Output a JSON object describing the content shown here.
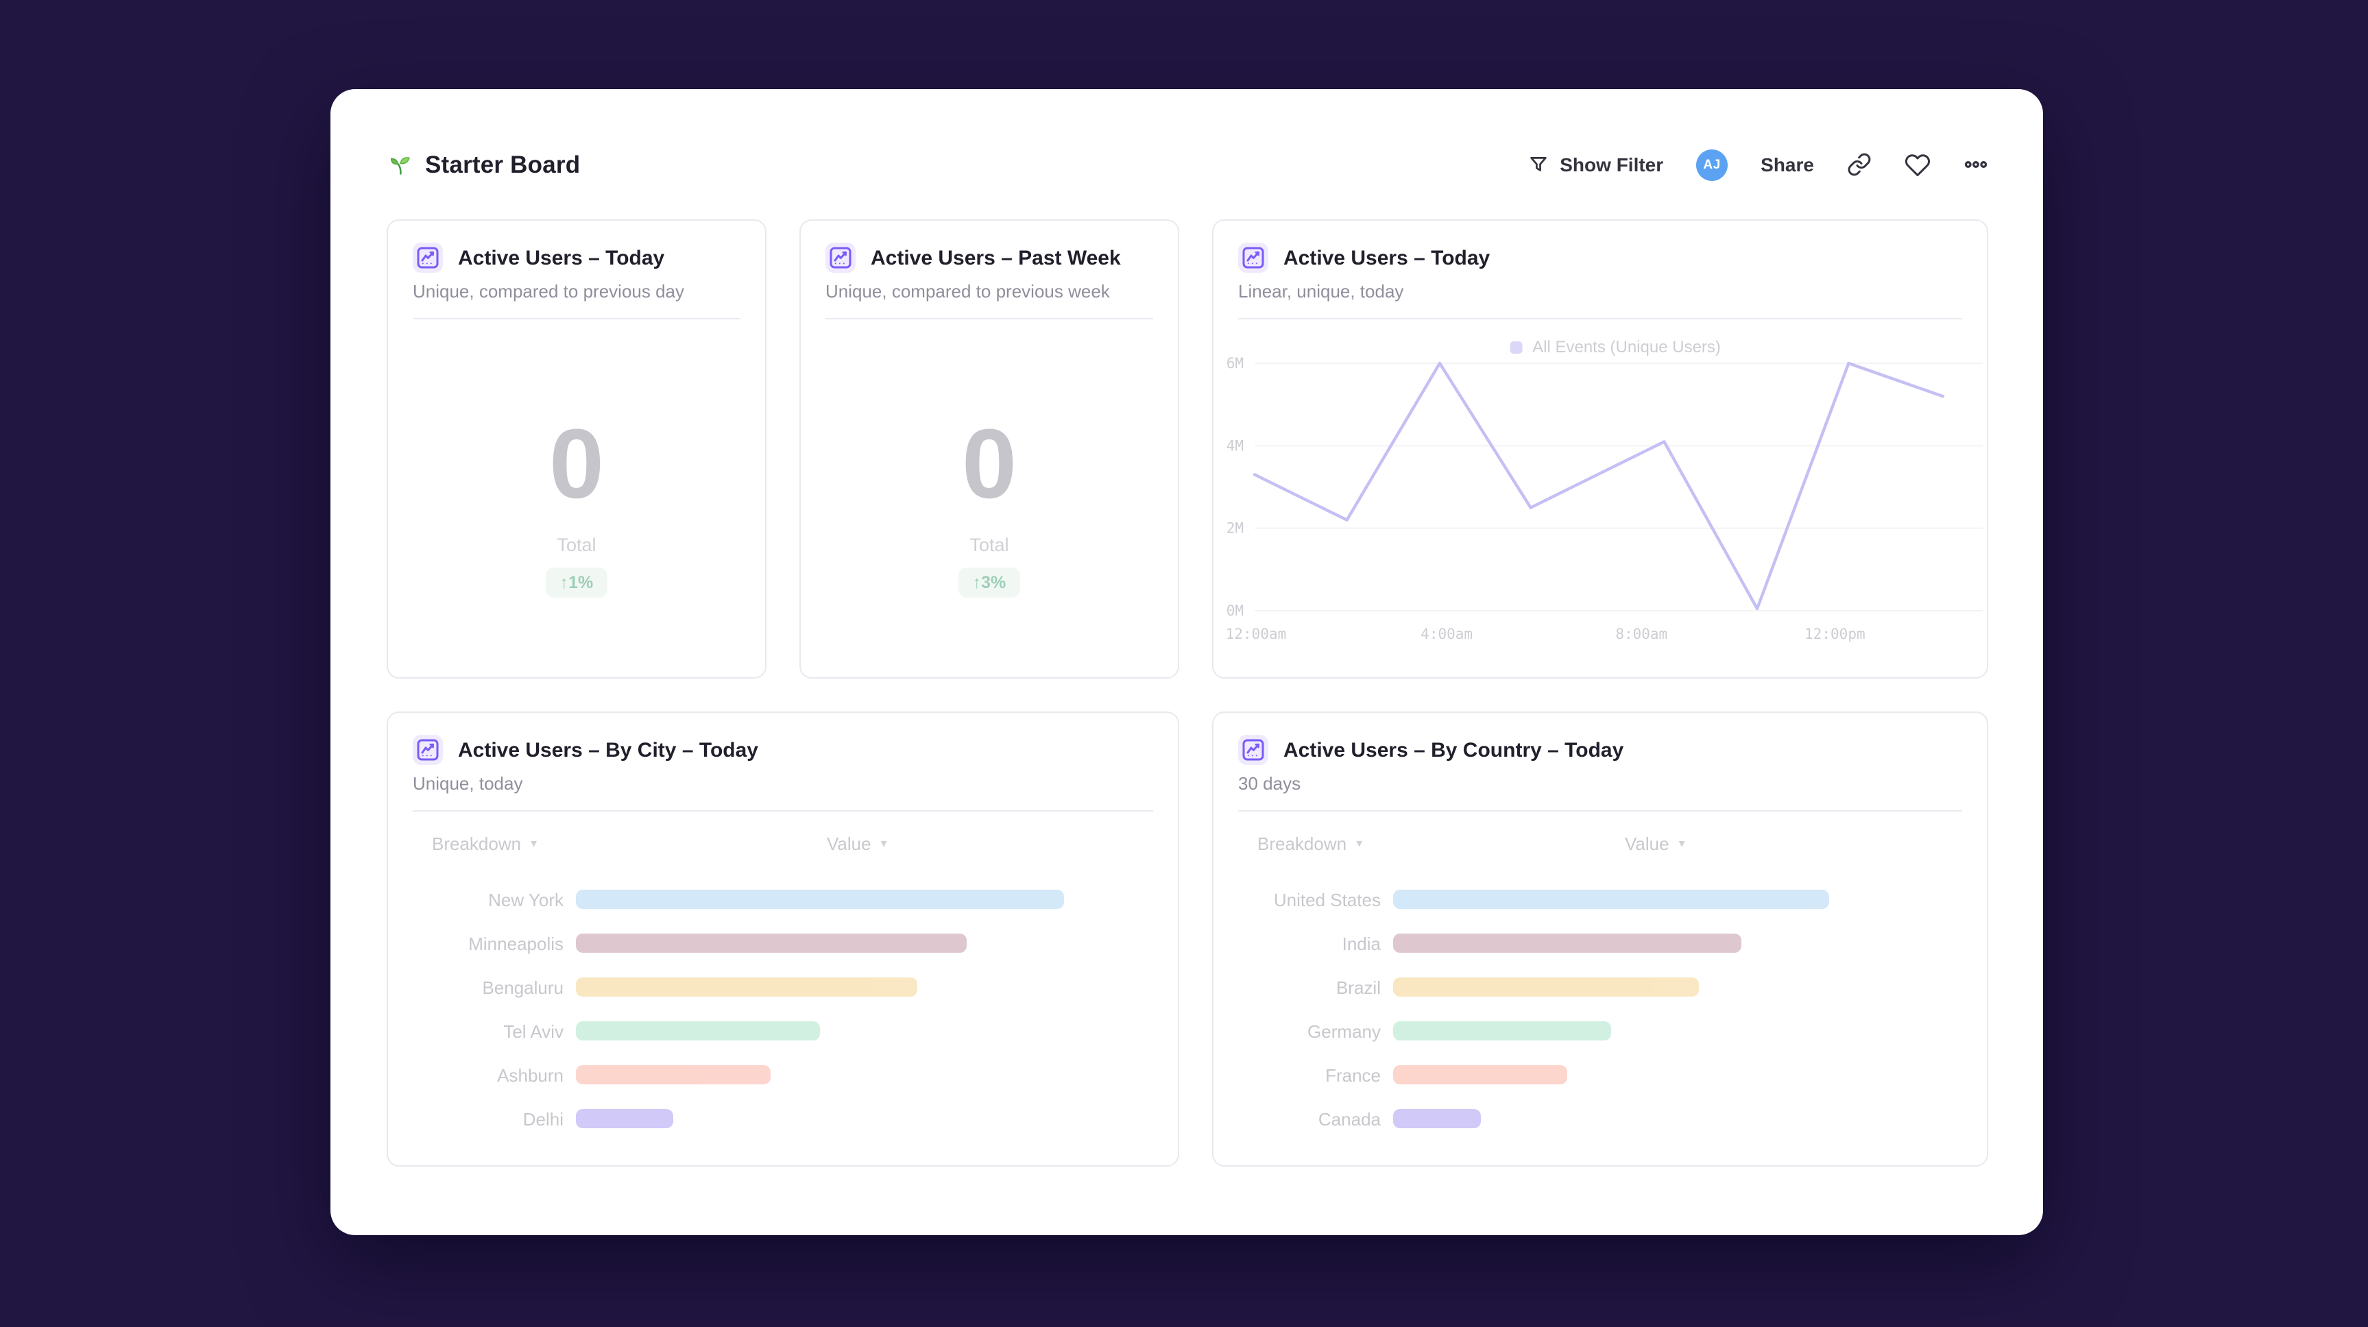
{
  "theme": {
    "page_bg": "#211642",
    "card_bg": "#ffffff",
    "accent_violet": "#7a5af8",
    "card_icon_bg": "#efeafd",
    "border": "#e9e8ee",
    "title_color": "#211f2b",
    "muted_text": "#908e9b",
    "avatar_blue": "#5ba3f2",
    "delta_green": "#3f9f74",
    "delta_bg": "#e4f3eb"
  },
  "header": {
    "title": "Starter Board",
    "title_icon": "seedling-icon",
    "show_filter": "Show Filter",
    "avatar": "AJ",
    "share": "Share",
    "icon_buttons": [
      "copy-link-icon",
      "heart-icon",
      "more-options-icon"
    ]
  },
  "cards": {
    "today": {
      "icon": "line-chart-icon",
      "title": "Active Users – Today",
      "subtitle": "Unique, compared to previous day",
      "value": "0",
      "value_caption": "Total",
      "delta": "↑1%"
    },
    "past_week": {
      "icon": "line-chart-icon",
      "title": "Active Users – Past Week",
      "subtitle": "Unique, compared to previous week",
      "value": "0",
      "value_caption": "Total",
      "delta": "↑3%"
    },
    "linear": {
      "icon": "line-chart-icon",
      "title": "Active Users – Today",
      "subtitle": "Linear, unique, today",
      "legend": "All Events (Unique Users)"
    },
    "by_city": {
      "icon": "line-chart-icon",
      "title": "Active Users – By City – Today",
      "subtitle": "Unique, today",
      "columns": {
        "breakdown": "Breakdown",
        "value": "Value"
      }
    },
    "by_country": {
      "icon": "line-chart-icon",
      "title": "Active Users – By Country – Today",
      "subtitle": "30 days",
      "columns": {
        "breakdown": "Breakdown",
        "value": "Value"
      }
    }
  },
  "chart_data": [
    {
      "id": "active-users-today-linear",
      "type": "line",
      "title": "Active Users – Today",
      "legend_entries": [
        "All Events (Unique Users)"
      ],
      "legend_position": "top-center",
      "line_color": "#8b82ea",
      "legend_swatch_color": "#b9b1f4",
      "grid": "horizontal",
      "ylim_millions": [
        0,
        6.5
      ],
      "yticks": [
        "0M",
        "2M",
        "4M",
        "6M"
      ],
      "xticks": [
        {
          "label": "12:00am",
          "f": 0.002
        },
        {
          "label": "4:00am",
          "f": 0.279
        },
        {
          "label": "8:00am",
          "f": 0.562
        },
        {
          "label": "12:00pm",
          "f": 0.843
        }
      ],
      "series": [
        {
          "name": "All Events (Unique Users)",
          "points": [
            {
              "t": "12:00am",
              "f": 0.0,
              "v_millions": 3.3
            },
            {
              "t": "2:00am",
              "f": 0.134,
              "v_millions": 2.2
            },
            {
              "t": "4:00am",
              "f": 0.269,
              "v_millions": 6.0
            },
            {
              "t": "6:00am",
              "f": 0.401,
              "v_millions": 2.5
            },
            {
              "t": "8:00am",
              "f": 0.595,
              "v_millions": 4.1
            },
            {
              "t": "10:00am",
              "f": 0.73,
              "v_millions": 0.05
            },
            {
              "t": "12:00pm",
              "f": 0.863,
              "v_millions": 6.0
            },
            {
              "t": "2:00pm",
              "f": 1.0,
              "v_millions": 5.2
            }
          ]
        }
      ]
    },
    {
      "id": "active-users-by-city",
      "type": "bar",
      "orientation": "horizontal",
      "title": "Active Users – By City – Today",
      "categories": [
        "New York",
        "Minneapolis",
        "Bengaluru",
        "Tel Aviv",
        "Ashburn",
        "Delhi"
      ],
      "relative_values": [
        1.0,
        0.8,
        0.7,
        0.5,
        0.4,
        0.2
      ],
      "colors": [
        "#a9d3f2",
        "#bf90a0",
        "#f4d187",
        "#a4e3c5",
        "#faad9d",
        "#a494f0"
      ]
    },
    {
      "id": "active-users-by-country",
      "type": "bar",
      "orientation": "horizontal",
      "title": "Active Users – By Country – Today",
      "categories": [
        "United States",
        "India",
        "Brazil",
        "Germany",
        "France",
        "Canada"
      ],
      "relative_values": [
        1.0,
        0.8,
        0.7,
        0.5,
        0.4,
        0.2
      ],
      "colors": [
        "#a9d3f2",
        "#bf90a0",
        "#f4d187",
        "#a4e3c5",
        "#faad9d",
        "#a494f0"
      ]
    }
  ]
}
